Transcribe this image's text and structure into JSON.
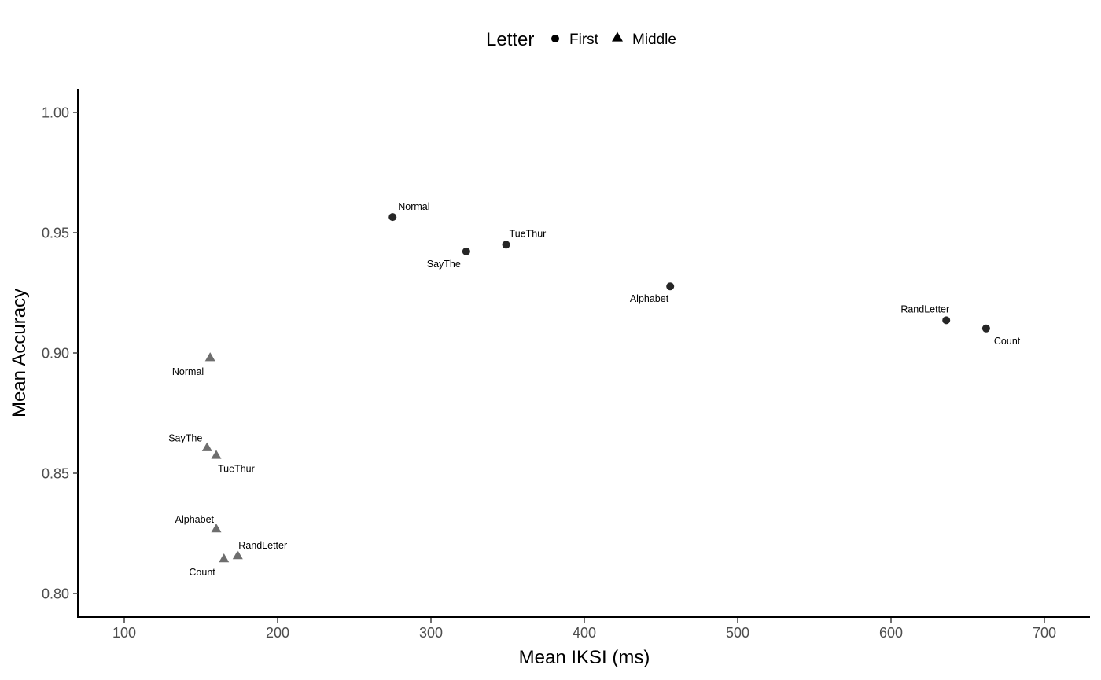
{
  "chart_data": {
    "type": "scatter",
    "xlabel": "Mean IKSI (ms)",
    "ylabel": "Mean Accuracy",
    "xlim": [
      70,
      730
    ],
    "ylim": [
      0.79,
      1.01
    ],
    "x_ticks": [
      100,
      200,
      300,
      400,
      500,
      600,
      700
    ],
    "y_ticks": [
      0.8,
      0.85,
      0.9,
      0.95,
      1.0
    ],
    "x_tick_labels": [
      "100",
      "200",
      "300",
      "400",
      "500",
      "600",
      "700"
    ],
    "y_tick_labels": [
      "0.80",
      "0.85",
      "0.90",
      "0.95",
      "1.00"
    ],
    "grid": false,
    "legend": {
      "title": "Letter",
      "position": "top",
      "entries": [
        {
          "name": "First",
          "shape": "circle",
          "color": "#262626"
        },
        {
          "name": "Middle",
          "shape": "triangle",
          "color": "#6e6e6e"
        }
      ]
    },
    "series": [
      {
        "name": "First",
        "shape": "circle",
        "color": "#262626",
        "points": [
          {
            "label": "Normal",
            "x": 275,
            "y": 0.9565
          },
          {
            "label": "SayThe",
            "x": 323,
            "y": 0.9422
          },
          {
            "label": "TueThur",
            "x": 349,
            "y": 0.945
          },
          {
            "label": "Alphabet",
            "x": 456,
            "y": 0.9277
          },
          {
            "label": "RandLetter",
            "x": 636,
            "y": 0.9136
          },
          {
            "label": "Count",
            "x": 662,
            "y": 0.9102
          }
        ]
      },
      {
        "name": "Middle",
        "shape": "triangle",
        "color": "#6e6e6e",
        "points": [
          {
            "label": "Normal",
            "x": 156,
            "y": 0.898
          },
          {
            "label": "SayThe",
            "x": 154,
            "y": 0.8606
          },
          {
            "label": "TueThur",
            "x": 160,
            "y": 0.8574
          },
          {
            "label": "Alphabet",
            "x": 160,
            "y": 0.8268
          },
          {
            "label": "RandLetter",
            "x": 174,
            "y": 0.8157
          },
          {
            "label": "Count",
            "x": 165,
            "y": 0.8144
          }
        ]
      }
    ]
  }
}
